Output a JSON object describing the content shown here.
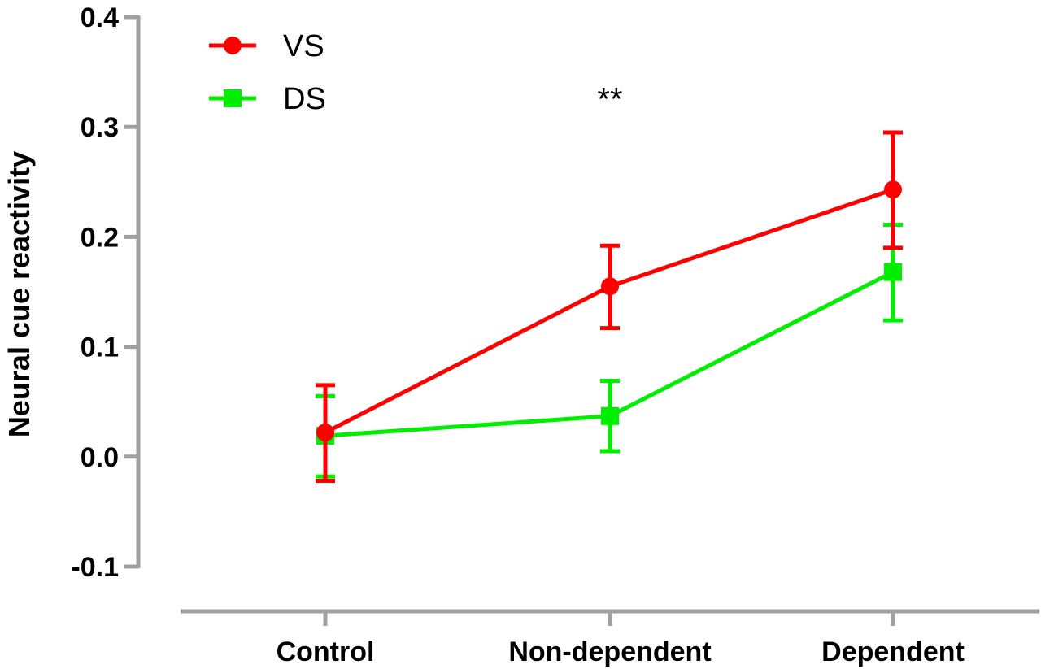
{
  "chart_data": {
    "type": "line",
    "title": "",
    "xlabel": "",
    "ylabel": "Neural cue reactivity",
    "categories": [
      "Control",
      "Non-dependent",
      "Dependent"
    ],
    "ylim": [
      -0.1,
      0.4
    ],
    "yticks": [
      "-0.1",
      "0.0",
      "0.1",
      "0.2",
      "0.3",
      "0.4"
    ],
    "ytick_values": [
      -0.1,
      0.0,
      0.1,
      0.2,
      0.3,
      0.4
    ],
    "legend_placement": "top-left",
    "grid": false,
    "series": [
      {
        "name": "VS",
        "color": "#ff0000",
        "marker": "circle",
        "values": [
          0.022,
          0.155,
          0.243
        ],
        "err_low": [
          -0.022,
          0.117,
          0.19
        ],
        "err_high": [
          0.065,
          0.192,
          0.295
        ]
      },
      {
        "name": "DS",
        "color": "#00ee00",
        "marker": "square",
        "values": [
          0.019,
          0.037,
          0.168
        ],
        "err_low": [
          -0.018,
          0.005,
          0.124
        ],
        "err_high": [
          0.055,
          0.069,
          0.211
        ]
      }
    ],
    "annotations": [
      {
        "text": "**",
        "category": "Non-dependent",
        "y": 0.33
      }
    ],
    "axis_color": "#a0a0a0"
  }
}
